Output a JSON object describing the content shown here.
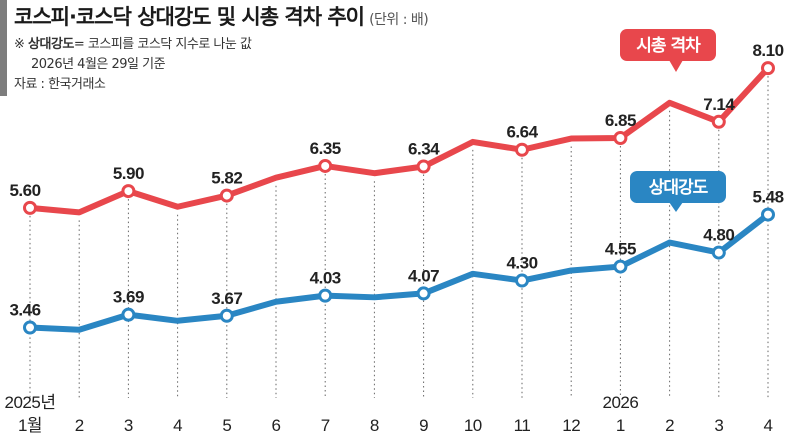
{
  "header": {
    "title": "코스피·코스닥 상대강도 및 시총 격차 추이",
    "unit": "(단위 : 배)",
    "note_symbol": "※",
    "note_term": "상대강도",
    "note_def": "= 코스피를 코스닥 지수로 나눈 값",
    "note_date": "2026년 4월은 29일 기준",
    "source": "자료 : 한국거래소"
  },
  "colors": {
    "market_cap_gap": "#e8474c",
    "relative_strength": "#2a86c3",
    "guide": "#666666"
  },
  "chart_data": {
    "type": "line",
    "title": "코스피·코스닥 상대강도 및 시총 격차 추이",
    "unit": "배",
    "x": [
      "1월",
      "2",
      "3",
      "4",
      "5",
      "6",
      "7",
      "8",
      "9",
      "10",
      "11",
      "12",
      "1",
      "2",
      "3",
      "4"
    ],
    "year_labels": [
      {
        "label": "2025년",
        "index": 0
      },
      {
        "label": "2026",
        "index": 12
      }
    ],
    "series": [
      {
        "name": "시총 격차",
        "color": "#e8474c",
        "values": [
          5.6,
          5.52,
          5.9,
          5.62,
          5.82,
          6.14,
          6.35,
          6.22,
          6.34,
          6.78,
          6.64,
          6.84,
          6.85,
          7.48,
          7.14,
          8.1
        ],
        "labels": [
          "5.60",
          "",
          "5.90",
          "",
          "5.82",
          "",
          "6.35",
          "",
          "6.34",
          "",
          "6.64",
          "",
          "6.85",
          "",
          "7.14",
          "8.10"
        ]
      },
      {
        "name": "상대강도",
        "color": "#2a86c3",
        "values": [
          3.46,
          3.42,
          3.69,
          3.58,
          3.67,
          3.92,
          4.03,
          4.0,
          4.07,
          4.42,
          4.3,
          4.48,
          4.55,
          4.98,
          4.8,
          5.48
        ],
        "labels": [
          "3.46",
          "",
          "3.69",
          "",
          "3.67",
          "",
          "4.03",
          "",
          "4.07",
          "",
          "4.30",
          "",
          "4.55",
          "",
          "4.80",
          "5.48"
        ]
      }
    ],
    "marked_points": [
      0,
      2,
      4,
      6,
      8,
      10,
      12,
      14,
      15
    ],
    "grid": false
  }
}
